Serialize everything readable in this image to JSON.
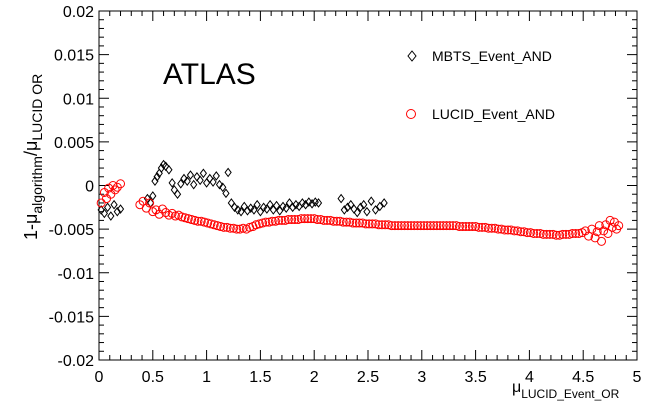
{
  "chart_data": {
    "type": "scatter",
    "annotation": "ATLAS",
    "xlabel": {
      "main": "μ",
      "sub": "LUCID_Event_OR"
    },
    "ylabel": {
      "prefix": "1-μ",
      "sub1": "algorithm",
      "mid": "/μ",
      "sub2": "LUCID OR"
    },
    "xlim": [
      0,
      5
    ],
    "ylim": [
      -0.02,
      0.02
    ],
    "x_ticks": [
      {
        "v": 0,
        "label": "0"
      },
      {
        "v": 0.5,
        "label": "0.5"
      },
      {
        "v": 1,
        "label": "1"
      },
      {
        "v": 1.5,
        "label": "1.5"
      },
      {
        "v": 2,
        "label": "2"
      },
      {
        "v": 2.5,
        "label": "2.5"
      },
      {
        "v": 3,
        "label": "3"
      },
      {
        "v": 3.5,
        "label": "3.5"
      },
      {
        "v": 4,
        "label": "4"
      },
      {
        "v": 4.5,
        "label": "4.5"
      },
      {
        "v": 5,
        "label": "5"
      }
    ],
    "y_ticks": [
      {
        "v": 0.02,
        "label": "0.02"
      },
      {
        "v": 0.015,
        "label": "0.015"
      },
      {
        "v": 0.01,
        "label": "0.01"
      },
      {
        "v": 0.005,
        "label": "0.005"
      },
      {
        "v": 0,
        "label": "0"
      },
      {
        "v": -0.005,
        "label": "-0.005"
      },
      {
        "v": -0.01,
        "label": "-0.01"
      },
      {
        "v": -0.015,
        "label": "-0.015"
      },
      {
        "v": -0.02,
        "label": "-0.02"
      }
    ],
    "legend_placement": "top-right",
    "series": [
      {
        "name": "MBTS_Event_AND",
        "marker": "diamond",
        "color": "#000000",
        "points": [
          [
            0.02,
            -0.0028
          ],
          [
            0.05,
            -0.0032
          ],
          [
            0.08,
            -0.0025
          ],
          [
            0.11,
            -0.0035
          ],
          [
            0.14,
            -0.0022
          ],
          [
            0.17,
            -0.003
          ],
          [
            0.2,
            -0.0027
          ],
          [
            0.45,
            -0.0015
          ],
          [
            0.48,
            -0.002
          ],
          [
            0.5,
            -0.0012
          ],
          [
            0.52,
            0.0005
          ],
          [
            0.54,
            0.001
          ],
          [
            0.56,
            0.0014
          ],
          [
            0.58,
            0.002
          ],
          [
            0.6,
            0.0024
          ],
          [
            0.62,
            0.0022
          ],
          [
            0.65,
            0.0018
          ],
          [
            0.68,
            0.0003
          ],
          [
            0.7,
            -0.0005
          ],
          [
            0.73,
            -0.001
          ],
          [
            0.76,
            0.0002
          ],
          [
            0.79,
            0.0008
          ],
          [
            0.82,
            0.0005
          ],
          [
            0.85,
            0.0012
          ],
          [
            0.88,
            0.0001
          ],
          [
            0.91,
            0.001
          ],
          [
            0.94,
            0.0006
          ],
          [
            0.97,
            0.0014
          ],
          [
            1.0,
            0.0003
          ],
          [
            1.03,
            0.0008
          ],
          [
            1.06,
            0.0004
          ],
          [
            1.09,
            0.0011
          ],
          [
            1.12,
            0.0001
          ],
          [
            1.15,
            -0.0002
          ],
          [
            1.18,
            -0.0009
          ],
          [
            1.2,
            0.0015
          ],
          [
            1.23,
            -0.002
          ],
          [
            1.26,
            -0.0025
          ],
          [
            1.29,
            -0.0028
          ],
          [
            1.32,
            -0.003
          ],
          [
            1.35,
            -0.0024
          ],
          [
            1.38,
            -0.0029
          ],
          [
            1.41,
            -0.0026
          ],
          [
            1.44,
            -0.0028
          ],
          [
            1.47,
            -0.0022
          ],
          [
            1.5,
            -0.003
          ],
          [
            1.53,
            -0.0025
          ],
          [
            1.56,
            -0.0027
          ],
          [
            1.59,
            -0.0022
          ],
          [
            1.62,
            -0.0028
          ],
          [
            1.65,
            -0.0023
          ],
          [
            1.68,
            -0.0029
          ],
          [
            1.71,
            -0.0024
          ],
          [
            1.74,
            -0.0026
          ],
          [
            1.77,
            -0.002
          ],
          [
            1.8,
            -0.0025
          ],
          [
            1.83,
            -0.0022
          ],
          [
            1.86,
            -0.0024
          ],
          [
            1.89,
            -0.002
          ],
          [
            1.92,
            -0.0022
          ],
          [
            1.95,
            -0.0019
          ],
          [
            1.98,
            -0.0021
          ],
          [
            2.01,
            -0.0019
          ],
          [
            2.04,
            -0.002
          ],
          [
            2.25,
            -0.0015
          ],
          [
            2.28,
            -0.0028
          ],
          [
            2.31,
            -0.0025
          ],
          [
            2.34,
            -0.0022
          ],
          [
            2.37,
            -0.0027
          ],
          [
            2.4,
            -0.0031
          ],
          [
            2.43,
            -0.0025
          ],
          [
            2.46,
            -0.0022
          ],
          [
            2.49,
            -0.003
          ],
          [
            2.53,
            -0.0018
          ],
          [
            2.57,
            -0.0028
          ],
          [
            2.61,
            -0.0024
          ],
          [
            2.65,
            -0.002
          ]
        ]
      },
      {
        "name": "LUCID_Event_AND",
        "marker": "open-circle",
        "color": "#ff0000",
        "points": [
          [
            0.02,
            -0.002
          ],
          [
            0.05,
            -0.0008
          ],
          [
            0.07,
            -0.0015
          ],
          [
            0.09,
            -0.0003
          ],
          [
            0.11,
            -0.001
          ],
          [
            0.13,
            0.0
          ],
          [
            0.15,
            -0.0005
          ],
          [
            0.17,
            -0.0002
          ],
          [
            0.2,
            0.0002
          ],
          [
            0.38,
            -0.0022
          ],
          [
            0.41,
            -0.0018
          ],
          [
            0.44,
            -0.0026
          ],
          [
            0.47,
            -0.002
          ],
          [
            0.5,
            -0.003
          ],
          [
            0.53,
            -0.0028
          ],
          [
            0.56,
            -0.0033
          ],
          [
            0.59,
            -0.0027
          ],
          [
            0.62,
            -0.0031
          ],
          [
            0.65,
            -0.0034
          ],
          [
            0.68,
            -0.0032
          ],
          [
            0.71,
            -0.0035
          ],
          [
            0.74,
            -0.0034
          ],
          [
            0.77,
            -0.0036
          ],
          [
            0.8,
            -0.0037
          ],
          [
            0.83,
            -0.0038
          ],
          [
            0.86,
            -0.0039
          ],
          [
            0.89,
            -0.004
          ],
          [
            0.92,
            -0.0041
          ],
          [
            0.95,
            -0.0041
          ],
          [
            0.98,
            -0.0042
          ],
          [
            1.01,
            -0.0043
          ],
          [
            1.04,
            -0.0044
          ],
          [
            1.07,
            -0.0045
          ],
          [
            1.1,
            -0.0046
          ],
          [
            1.13,
            -0.0047
          ],
          [
            1.16,
            -0.0048
          ],
          [
            1.19,
            -0.0048
          ],
          [
            1.22,
            -0.0049
          ],
          [
            1.25,
            -0.0049
          ],
          [
            1.28,
            -0.005
          ],
          [
            1.31,
            -0.005
          ],
          [
            1.34,
            -0.0049
          ],
          [
            1.37,
            -0.005
          ],
          [
            1.4,
            -0.0048
          ],
          [
            1.43,
            -0.0047
          ],
          [
            1.46,
            -0.0045
          ],
          [
            1.49,
            -0.0044
          ],
          [
            1.52,
            -0.0043
          ],
          [
            1.55,
            -0.0042
          ],
          [
            1.58,
            -0.0042
          ],
          [
            1.61,
            -0.0041
          ],
          [
            1.64,
            -0.0041
          ],
          [
            1.67,
            -0.004
          ],
          [
            1.7,
            -0.004
          ],
          [
            1.73,
            -0.004
          ],
          [
            1.76,
            -0.0039
          ],
          [
            1.79,
            -0.0039
          ],
          [
            1.82,
            -0.0039
          ],
          [
            1.85,
            -0.0039
          ],
          [
            1.88,
            -0.0038
          ],
          [
            1.91,
            -0.0038
          ],
          [
            1.94,
            -0.0038
          ],
          [
            1.97,
            -0.0038
          ],
          [
            2.0,
            -0.0038
          ],
          [
            2.03,
            -0.0039
          ],
          [
            2.06,
            -0.0039
          ],
          [
            2.09,
            -0.004
          ],
          [
            2.12,
            -0.004
          ],
          [
            2.15,
            -0.004
          ],
          [
            2.18,
            -0.0041
          ],
          [
            2.21,
            -0.0041
          ],
          [
            2.24,
            -0.0041
          ],
          [
            2.27,
            -0.0042
          ],
          [
            2.3,
            -0.0042
          ],
          [
            2.33,
            -0.0042
          ],
          [
            2.36,
            -0.0043
          ],
          [
            2.39,
            -0.0043
          ],
          [
            2.42,
            -0.0043
          ],
          [
            2.45,
            -0.0043
          ],
          [
            2.48,
            -0.0044
          ],
          [
            2.51,
            -0.0044
          ],
          [
            2.54,
            -0.0044
          ],
          [
            2.57,
            -0.0044
          ],
          [
            2.6,
            -0.0045
          ],
          [
            2.63,
            -0.0045
          ],
          [
            2.66,
            -0.0045
          ],
          [
            2.69,
            -0.0045
          ],
          [
            2.72,
            -0.0046
          ],
          [
            2.75,
            -0.0046
          ],
          [
            2.78,
            -0.0046
          ],
          [
            2.81,
            -0.0046
          ],
          [
            2.84,
            -0.0046
          ],
          [
            2.87,
            -0.0046
          ],
          [
            2.9,
            -0.0046
          ],
          [
            2.93,
            -0.0046
          ],
          [
            2.96,
            -0.0046
          ],
          [
            2.99,
            -0.0046
          ],
          [
            3.02,
            -0.0046
          ],
          [
            3.05,
            -0.0046
          ],
          [
            3.08,
            -0.0046
          ],
          [
            3.11,
            -0.0046
          ],
          [
            3.14,
            -0.0046
          ],
          [
            3.17,
            -0.0046
          ],
          [
            3.2,
            -0.0046
          ],
          [
            3.23,
            -0.0046
          ],
          [
            3.26,
            -0.0046
          ],
          [
            3.29,
            -0.0046
          ],
          [
            3.32,
            -0.0046
          ],
          [
            3.35,
            -0.0047
          ],
          [
            3.38,
            -0.0047
          ],
          [
            3.41,
            -0.0047
          ],
          [
            3.44,
            -0.0047
          ],
          [
            3.47,
            -0.0047
          ],
          [
            3.5,
            -0.0047
          ],
          [
            3.53,
            -0.0048
          ],
          [
            3.56,
            -0.0048
          ],
          [
            3.59,
            -0.0048
          ],
          [
            3.62,
            -0.0049
          ],
          [
            3.65,
            -0.0049
          ],
          [
            3.68,
            -0.0049
          ],
          [
            3.71,
            -0.005
          ],
          [
            3.74,
            -0.005
          ],
          [
            3.77,
            -0.0051
          ],
          [
            3.8,
            -0.0051
          ],
          [
            3.83,
            -0.0051
          ],
          [
            3.86,
            -0.0052
          ],
          [
            3.89,
            -0.0052
          ],
          [
            3.92,
            -0.0053
          ],
          [
            3.95,
            -0.0053
          ],
          [
            3.98,
            -0.0054
          ],
          [
            4.01,
            -0.0054
          ],
          [
            4.04,
            -0.0055
          ],
          [
            4.07,
            -0.0055
          ],
          [
            4.1,
            -0.0055
          ],
          [
            4.13,
            -0.0056
          ],
          [
            4.16,
            -0.0056
          ],
          [
            4.19,
            -0.0056
          ],
          [
            4.22,
            -0.0056
          ],
          [
            4.25,
            -0.0057
          ],
          [
            4.28,
            -0.0057
          ],
          [
            4.31,
            -0.0056
          ],
          [
            4.34,
            -0.0056
          ],
          [
            4.37,
            -0.0056
          ],
          [
            4.4,
            -0.0055
          ],
          [
            4.43,
            -0.0055
          ],
          [
            4.46,
            -0.0055
          ],
          [
            4.49,
            -0.0054
          ],
          [
            4.52,
            -0.0052
          ],
          [
            4.55,
            -0.0058
          ],
          [
            4.58,
            -0.005
          ],
          [
            4.61,
            -0.006
          ],
          [
            4.63,
            -0.0053
          ],
          [
            4.65,
            -0.0046
          ],
          [
            4.67,
            -0.0064
          ],
          [
            4.69,
            -0.0052
          ],
          [
            4.71,
            -0.0045
          ],
          [
            4.73,
            -0.0055
          ],
          [
            4.75,
            -0.004
          ],
          [
            4.77,
            -0.0048
          ],
          [
            4.79,
            -0.0042
          ],
          [
            4.81,
            -0.005
          ],
          [
            4.83,
            -0.0046
          ]
        ]
      }
    ]
  }
}
